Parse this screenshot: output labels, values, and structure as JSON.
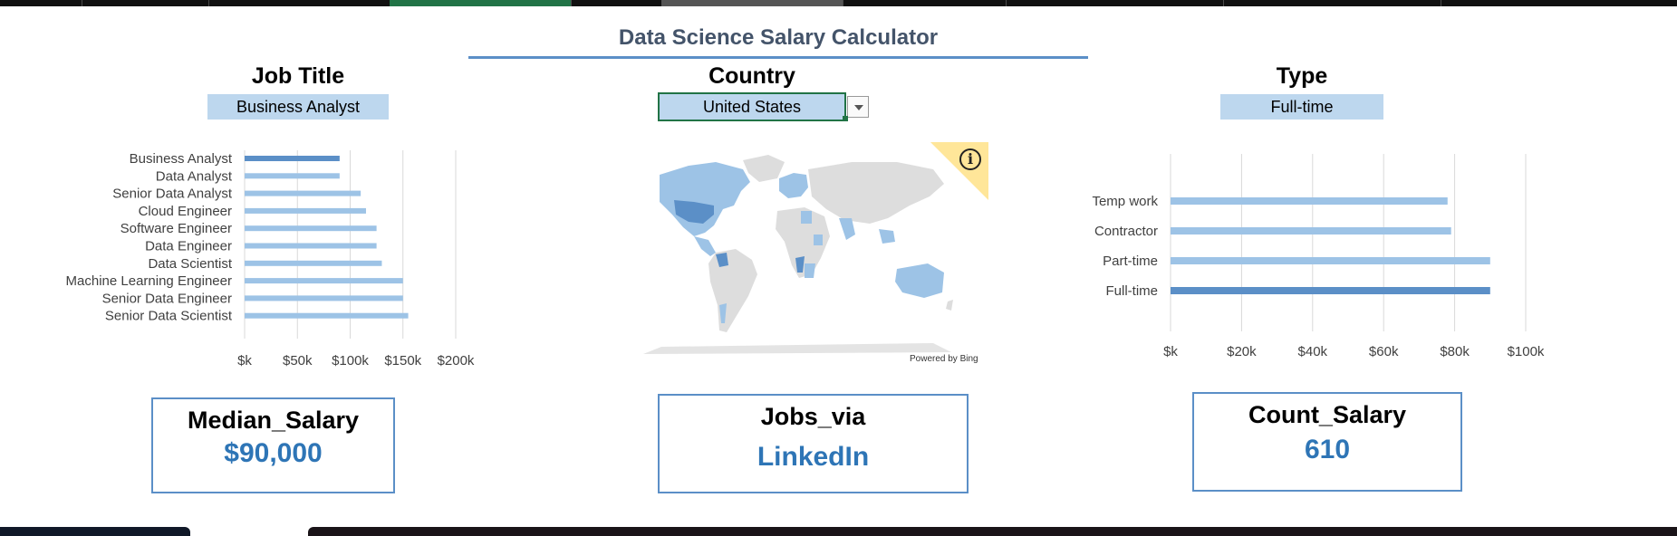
{
  "title": "Data Science Salary Calculator",
  "selectors": {
    "job_title": {
      "heading": "Job Title",
      "value": "Business Analyst"
    },
    "country": {
      "heading": "Country",
      "value": "United States"
    },
    "type": {
      "heading": "Type",
      "value": "Full-time"
    }
  },
  "map": {
    "attribution": "Powered by Bing",
    "info_symbol": "i"
  },
  "kpis": {
    "median_salary": {
      "label": "Median_Salary",
      "value": "$90,000"
    },
    "jobs_via": {
      "label": "Jobs_via",
      "value": "LinkedIn"
    },
    "count_salary": {
      "label": "Count_Salary",
      "value": "610"
    }
  },
  "colors": {
    "bar": "#9dc3e6",
    "bar_highlight": "#5b8fc7",
    "accent": "#2e75b6",
    "selector_fill": "#bdd7ee"
  },
  "chart_data": [
    {
      "type": "bar",
      "orientation": "horizontal",
      "categories": [
        "Business Analyst",
        "Data Analyst",
        "Senior Data Analyst",
        "Cloud Engineer",
        "Software Engineer",
        "Data Engineer",
        "Data Scientist",
        "Machine Learning Engineer",
        "Senior Data Engineer",
        "Senior Data Scientist"
      ],
      "values": [
        90000,
        90000,
        110000,
        115000,
        125000,
        125000,
        130000,
        150000,
        150000,
        155000
      ],
      "highlight": "Business Analyst",
      "xlim": [
        0,
        200000
      ],
      "x_ticks": [
        "$k",
        "$50k",
        "$100k",
        "$150k",
        "$200k"
      ],
      "grid": true
    },
    {
      "type": "bar",
      "orientation": "horizontal",
      "categories": [
        "Temp work",
        "Contractor",
        "Part-time",
        "Full-time"
      ],
      "values": [
        78000,
        79000,
        90000,
        90000
      ],
      "highlight": "Full-time",
      "xlim": [
        0,
        100000
      ],
      "x_ticks": [
        "$k",
        "$20k",
        "$40k",
        "$60k",
        "$80k",
        "$100k"
      ],
      "grid": true
    }
  ]
}
